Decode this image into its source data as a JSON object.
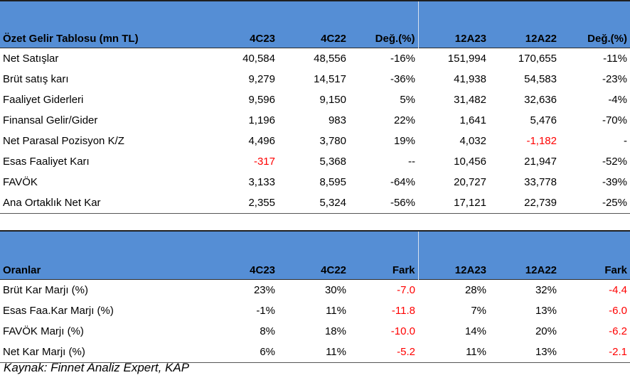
{
  "income": {
    "headers": [
      "Özet Gelir Tablosu (mn TL)",
      "4C23",
      "4C22",
      "Değ.(%)",
      "12A23",
      "12A22",
      "Değ.(%)"
    ],
    "rows": [
      [
        "Net Satışlar",
        "40,584",
        "48,556",
        "-16%",
        "151,994",
        "170,655",
        "-11%"
      ],
      [
        "Brüt satış karı",
        "9,279",
        "14,517",
        "-36%",
        "41,938",
        "54,583",
        "-23%"
      ],
      [
        "Faaliyet Giderleri",
        "9,596",
        "9,150",
        "5%",
        "31,482",
        "32,636",
        "-4%"
      ],
      [
        "Finansal Gelir/Gider",
        "1,196",
        "983",
        "22%",
        "1,641",
        "5,476",
        "-70%"
      ],
      [
        "Net Parasal Pozisyon K/Z",
        "4,496",
        "3,780",
        "19%",
        "4,032",
        "-1,182",
        "-"
      ],
      [
        "Esas Faaliyet Karı",
        "-317",
        "5,368",
        "--",
        "10,456",
        "21,947",
        "-52%"
      ],
      [
        "FAVÖK",
        "3,133",
        "8,595",
        "-64%",
        "20,727",
        "33,778",
        "-39%"
      ],
      [
        "Ana Ortaklık Net Kar",
        "2,355",
        "5,324",
        "-56%",
        "17,121",
        "22,739",
        "-25%"
      ]
    ]
  },
  "ratios": {
    "headers": [
      "Oranlar",
      "4C23",
      "4C22",
      "Fark",
      "12A23",
      "12A22",
      "Fark"
    ],
    "rows": [
      [
        "Brüt Kar Marjı (%)",
        "23%",
        "30%",
        "-7.0",
        "28%",
        "32%",
        "-4.4"
      ],
      [
        "Esas Faa.Kar Marjı (%)",
        "-1%",
        "11%",
        "-11.8",
        "7%",
        "13%",
        "-6.0"
      ],
      [
        "FAVÖK Marjı (%)",
        "8%",
        "18%",
        "-10.0",
        "14%",
        "20%",
        "-6.2"
      ],
      [
        "Net Kar Marjı (%)",
        "6%",
        "11%",
        "-5.2",
        "11%",
        "13%",
        "-2.1"
      ]
    ]
  },
  "source": "Kaynak: Finnet Analiz Expert, KAP",
  "colors": {
    "header_bg": "#558ed5",
    "negative": "#ff0000"
  }
}
